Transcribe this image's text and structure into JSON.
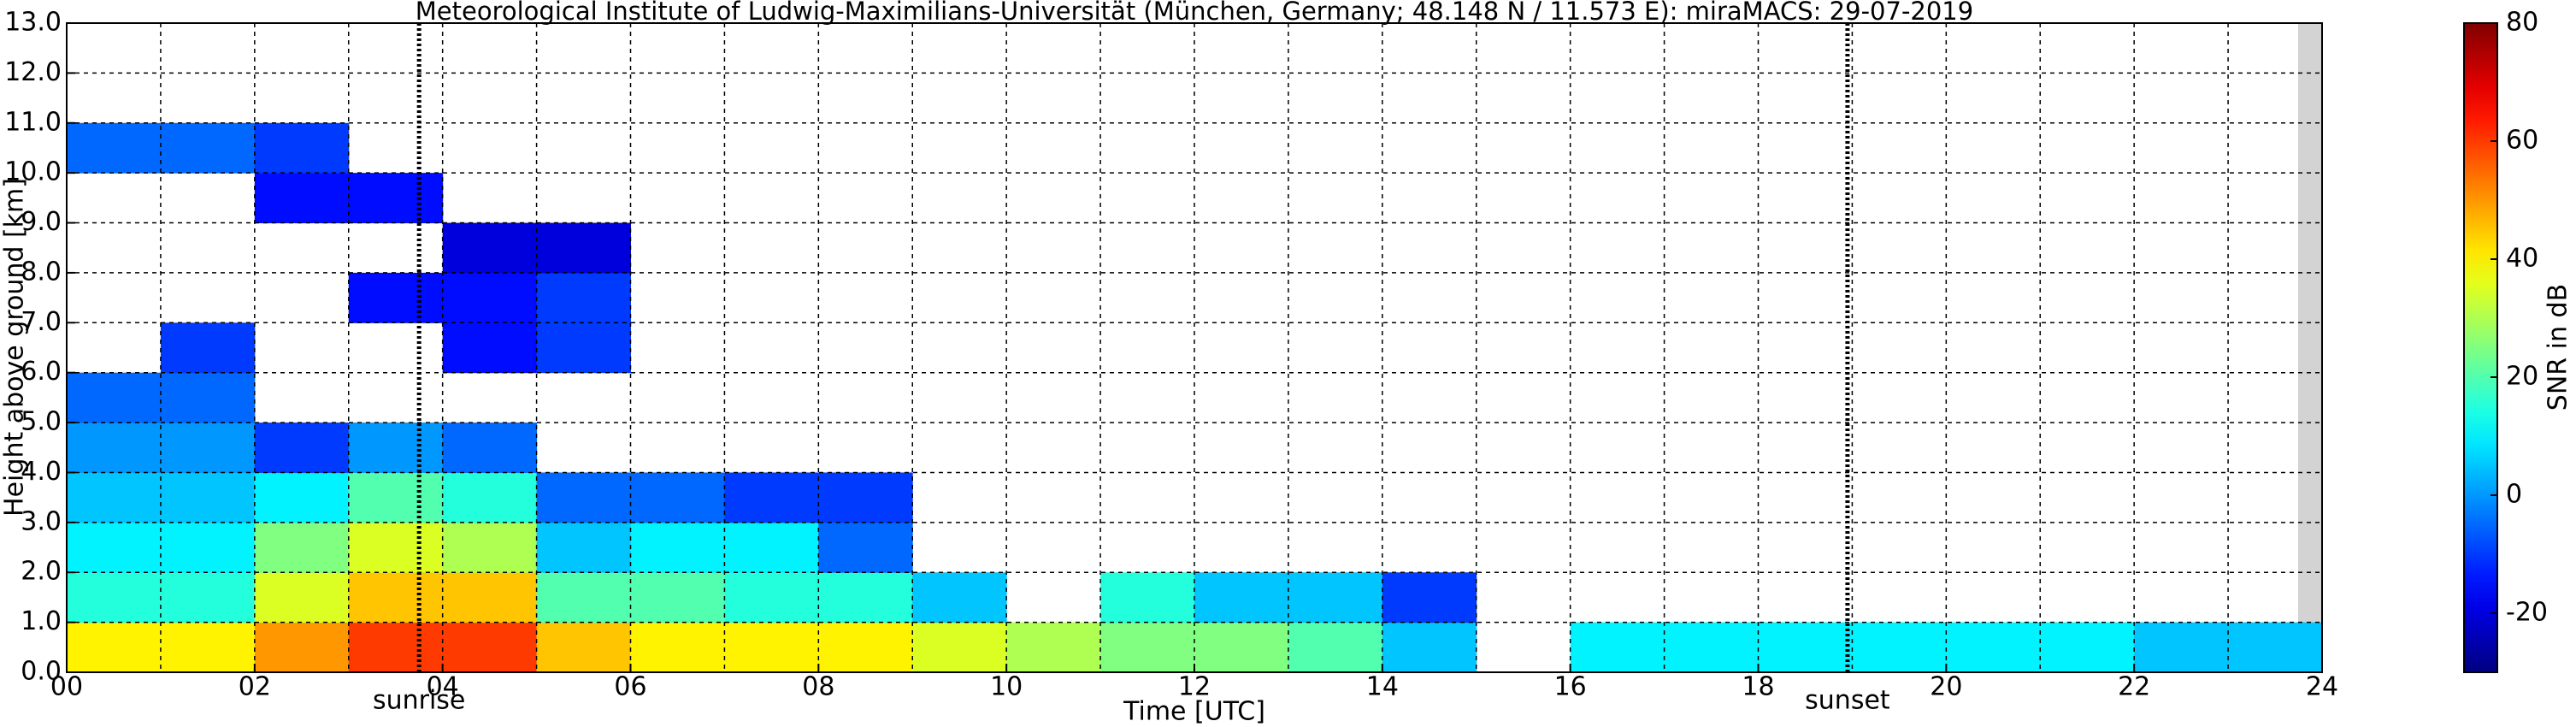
{
  "chart_data": {
    "type": "heatmap",
    "title": "Meteorological Institute of Ludwig-Maximilians-Universität (München, Germany; 48.148 N / 11.573 E):    miraMACS: 29-07-2019",
    "xlabel": "Time [UTC]",
    "ylabel": "Height above ground [km]",
    "colorbar_label": "SNR in dB",
    "x_bins": [
      0,
      1,
      2,
      3,
      4,
      5,
      6,
      7,
      8,
      9,
      10,
      11,
      12,
      13,
      14,
      15,
      16,
      17,
      18,
      19,
      20,
      21,
      22,
      23,
      24
    ],
    "y_bins": [
      0,
      1,
      2,
      3,
      4,
      5,
      6,
      7,
      8,
      9,
      10,
      11,
      12,
      13
    ],
    "z": [
      [
        40,
        40,
        50,
        60,
        60,
        45,
        40,
        40,
        40,
        35,
        30,
        25,
        25,
        20,
        5,
        null,
        10,
        10,
        10,
        10,
        10,
        10,
        5,
        5
      ],
      [
        15,
        15,
        35,
        45,
        45,
        20,
        20,
        15,
        15,
        5,
        null,
        15,
        5,
        5,
        -10,
        null,
        null,
        null,
        null,
        null,
        null,
        null,
        null,
        null
      ],
      [
        10,
        10,
        25,
        35,
        30,
        5,
        10,
        10,
        -5,
        null,
        null,
        null,
        null,
        null,
        null,
        null,
        null,
        null,
        null,
        null,
        null,
        null,
        null,
        null
      ],
      [
        5,
        5,
        10,
        20,
        15,
        -5,
        -5,
        -10,
        -10,
        null,
        null,
        null,
        null,
        null,
        null,
        null,
        null,
        null,
        null,
        null,
        null,
        null,
        null,
        null
      ],
      [
        0,
        0,
        -10,
        0,
        -5,
        null,
        null,
        null,
        null,
        null,
        null,
        null,
        null,
        null,
        null,
        null,
        null,
        null,
        null,
        null,
        null,
        null,
        null,
        null
      ],
      [
        -5,
        -5,
        null,
        null,
        null,
        null,
        null,
        null,
        null,
        null,
        null,
        null,
        null,
        null,
        null,
        null,
        null,
        null,
        null,
        null,
        null,
        null,
        null,
        null
      ],
      [
        null,
        -10,
        null,
        null,
        -15,
        -10,
        null,
        null,
        null,
        null,
        null,
        null,
        null,
        null,
        null,
        null,
        null,
        null,
        null,
        null,
        null,
        null,
        null,
        null
      ],
      [
        null,
        null,
        null,
        -15,
        -15,
        -10,
        null,
        null,
        null,
        null,
        null,
        null,
        null,
        null,
        null,
        null,
        null,
        null,
        null,
        null,
        null,
        null,
        null,
        null
      ],
      [
        null,
        null,
        null,
        null,
        -20,
        -20,
        null,
        null,
        null,
        null,
        null,
        null,
        null,
        null,
        null,
        null,
        null,
        null,
        null,
        null,
        null,
        null,
        null,
        null
      ],
      [
        null,
        null,
        -15,
        -15,
        null,
        null,
        null,
        null,
        null,
        null,
        null,
        null,
        null,
        null,
        null,
        null,
        null,
        null,
        null,
        null,
        null,
        null,
        null,
        null
      ],
      [
        -5,
        -5,
        -10,
        null,
        null,
        null,
        null,
        null,
        null,
        null,
        null,
        null,
        null,
        null,
        null,
        null,
        null,
        null,
        null,
        null,
        null,
        null,
        null,
        null
      ],
      [
        null,
        null,
        null,
        null,
        null,
        null,
        null,
        null,
        null,
        null,
        null,
        null,
        null,
        null,
        null,
        null,
        null,
        null,
        null,
        null,
        null,
        null,
        null,
        null
      ],
      [
        null,
        null,
        null,
        null,
        null,
        null,
        null,
        null,
        null,
        null,
        null,
        null,
        null,
        null,
        null,
        null,
        null,
        null,
        null,
        null,
        null,
        null,
        null,
        null
      ]
    ],
    "colormap": "jet",
    "clim": [
      -30,
      80
    ],
    "cticks": [
      -20,
      0,
      20,
      40,
      60,
      80
    ],
    "xlim": [
      0,
      24
    ],
    "xticks": [
      {
        "value": 0,
        "label": "00"
      },
      {
        "value": 2,
        "label": "02"
      },
      {
        "value": 4,
        "label": "04"
      },
      {
        "value": 6,
        "label": "06"
      },
      {
        "value": 8,
        "label": "08"
      },
      10,
      12,
      14,
      16,
      18,
      20,
      22,
      24
    ],
    "xminor": [
      1,
      3,
      5,
      7,
      9,
      11,
      13,
      15,
      17,
      19,
      21,
      23
    ],
    "ylim": [
      0,
      13
    ],
    "yticks": [
      {
        "value": 0,
        "label": "0.0"
      },
      {
        "value": 1,
        "label": "1.0"
      },
      {
        "value": 2,
        "label": "2.0"
      },
      {
        "value": 3,
        "label": "3.0"
      },
      {
        "value": 4,
        "label": "4.0"
      },
      {
        "value": 5,
        "label": "5.0"
      },
      {
        "value": 6,
        "label": "6.0"
      },
      {
        "value": 7,
        "label": "7.0"
      },
      {
        "value": 8,
        "label": "8.0"
      },
      {
        "value": 9,
        "label": "9.0"
      },
      {
        "value": 10,
        "label": "10.0"
      },
      {
        "value": 11,
        "label": "11.0"
      },
      {
        "value": 12,
        "label": "12.0"
      },
      {
        "value": 13,
        "label": "13.0"
      }
    ],
    "grid": true,
    "annotations": [
      {
        "text": "sunrise",
        "x": 3.75
      },
      {
        "text": "sunset",
        "x": 18.95
      }
    ]
  }
}
